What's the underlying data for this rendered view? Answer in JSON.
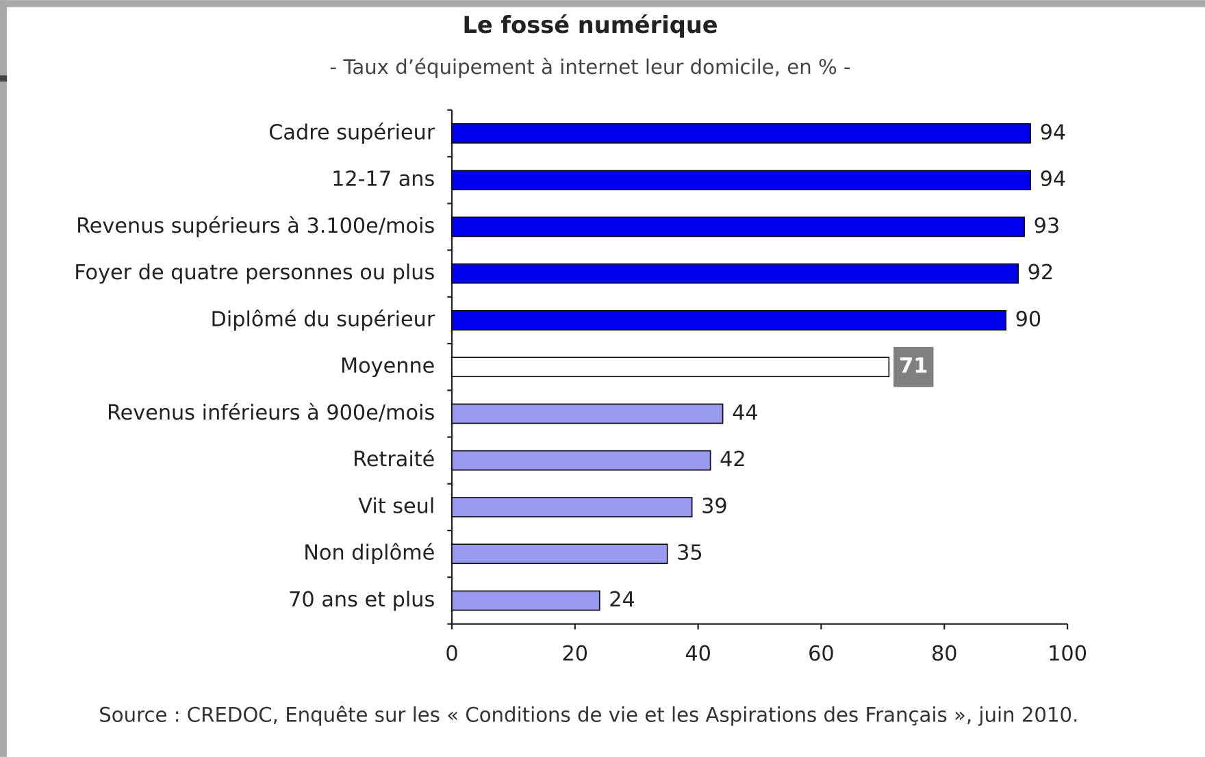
{
  "chart_data": {
    "type": "bar",
    "orientation": "horizontal",
    "title": "Le fossé numérique",
    "subtitle": "- Taux d’équipement à internet leur domicile, en % -",
    "source": "Source : CREDOC, Enquête sur les « Conditions de vie et les Aspirations des Français », juin 2010.",
    "categories": [
      "Cadre supérieur",
      "12-17 ans",
      "Revenus supérieurs à 3.100e/mois",
      "Foyer de quatre personnes ou plus",
      "Diplômé du supérieur",
      "Moyenne",
      "Revenus inférieurs à 900e/mois",
      "Retraité",
      "Vit seul",
      "Non diplômé",
      "70 ans et plus"
    ],
    "values": [
      94,
      94,
      93,
      92,
      90,
      71,
      44,
      42,
      39,
      35,
      24
    ],
    "colors": [
      "#0000ee",
      "#0000ee",
      "#0000ee",
      "#0000ee",
      "#0000ee",
      "#ffffff",
      "#9999ee",
      "#9999ee",
      "#9999ee",
      "#9999ee",
      "#9999ee"
    ],
    "highlight": {
      "index": 5,
      "color": "#808080"
    },
    "xlim": [
      0,
      100
    ],
    "xticks": [
      0,
      20,
      40,
      60,
      80,
      100
    ],
    "grid": false
  }
}
